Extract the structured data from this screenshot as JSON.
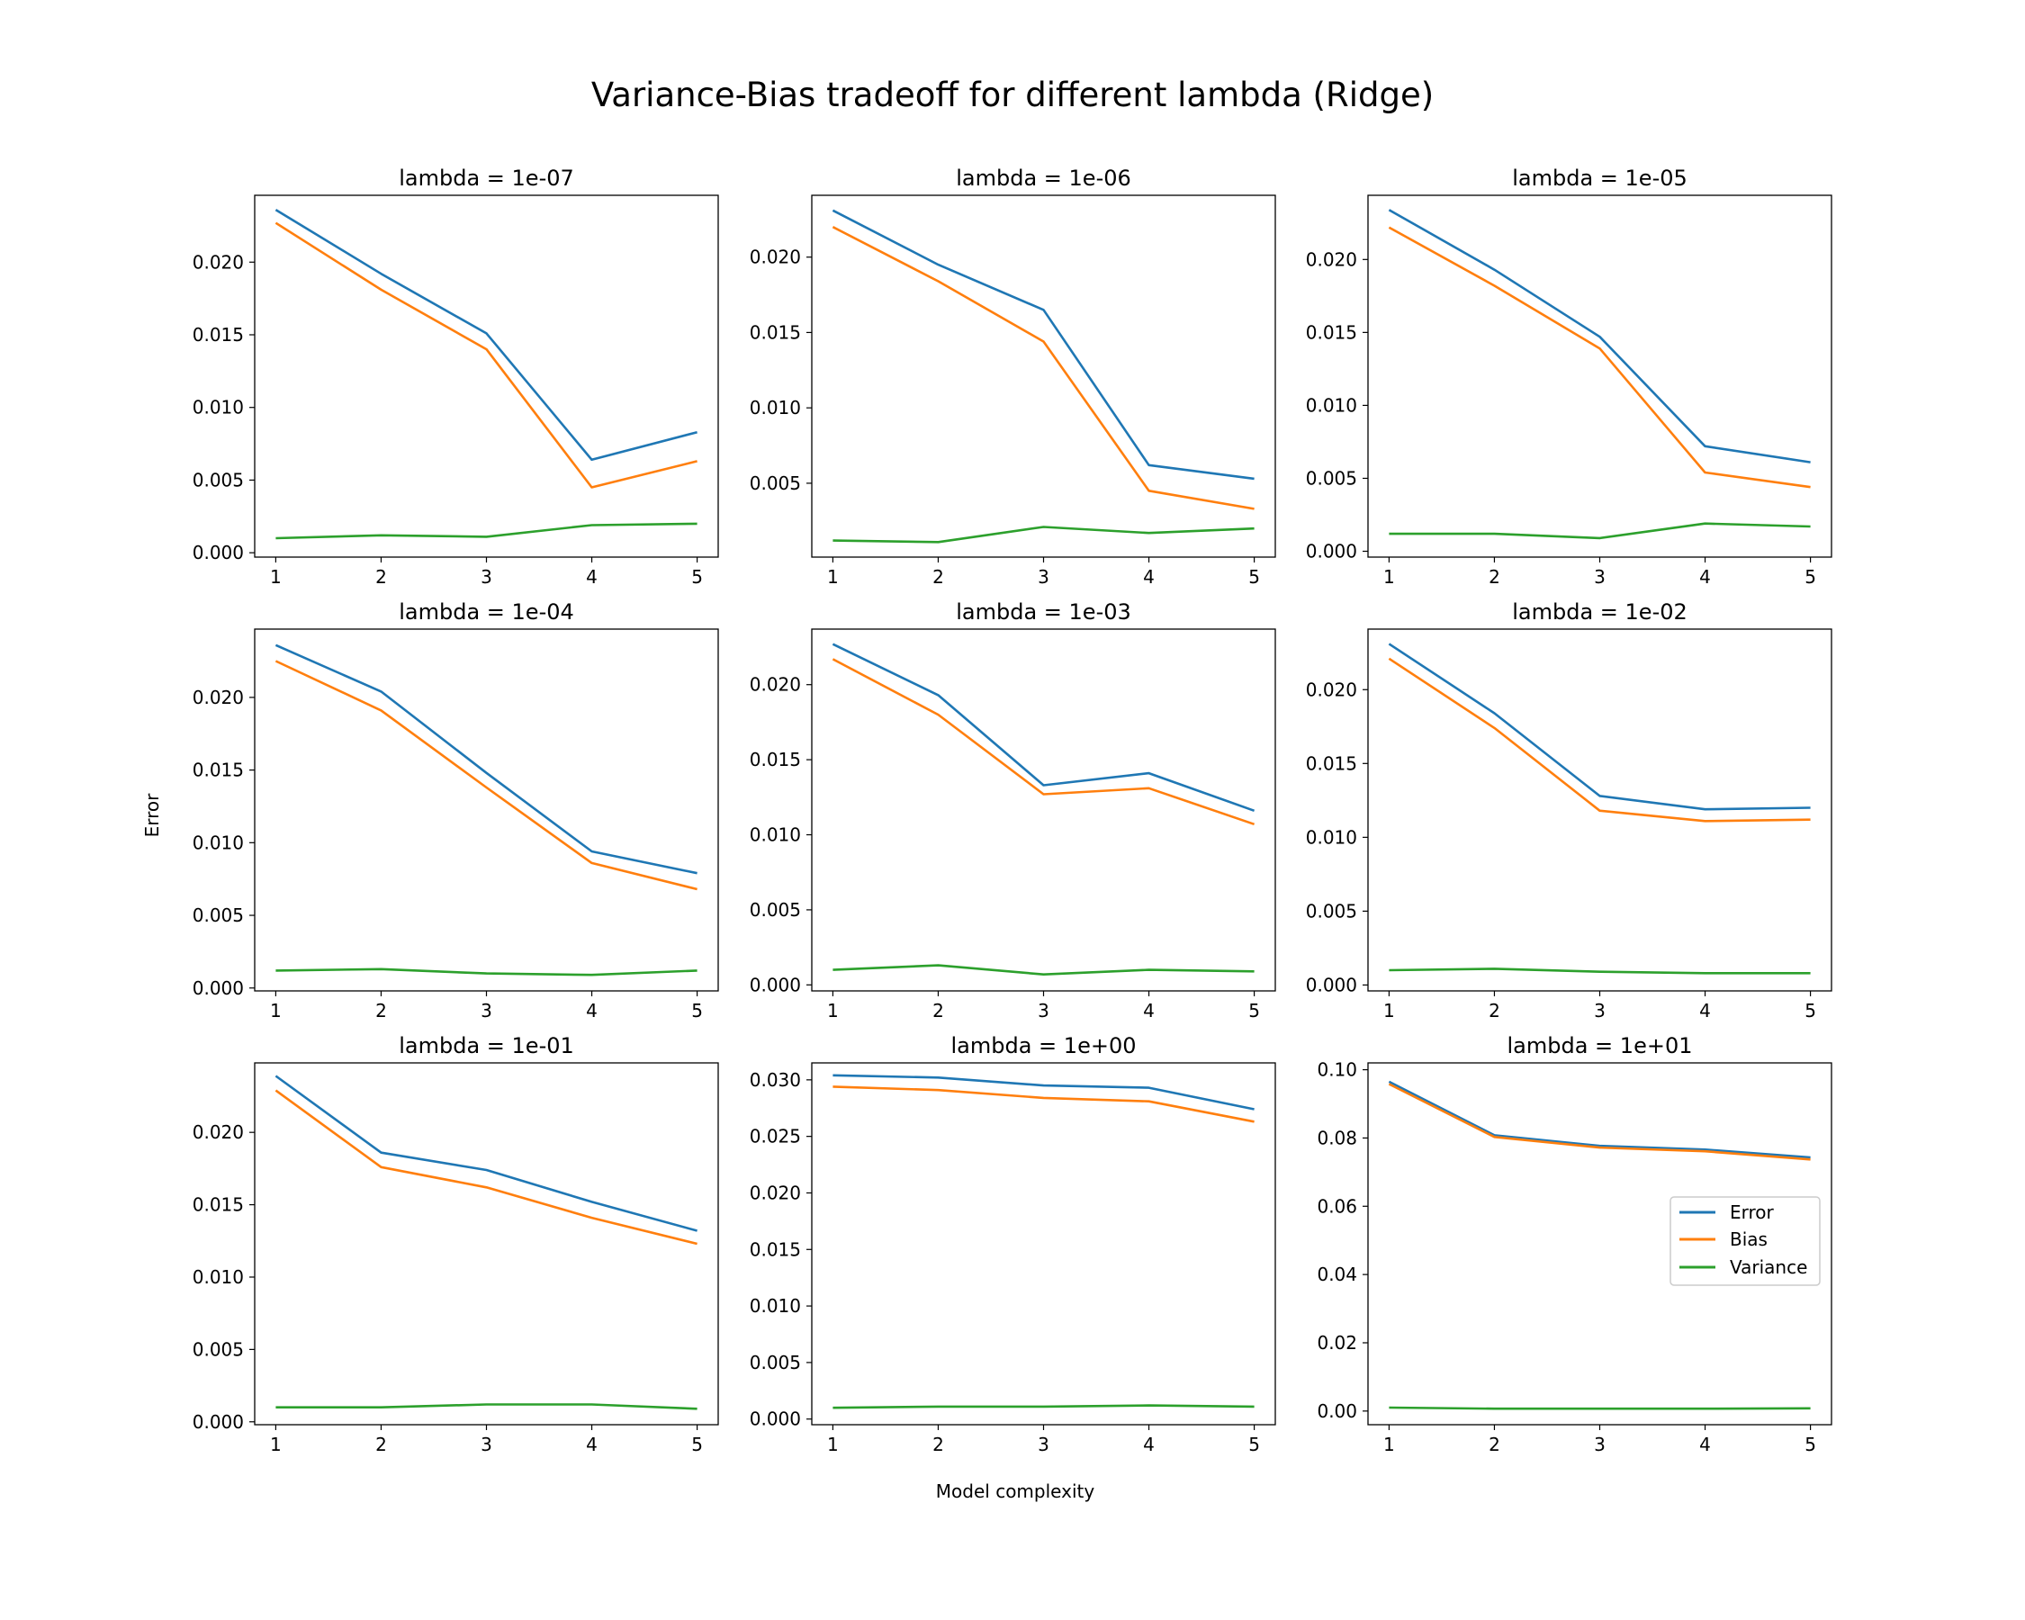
{
  "figure": {
    "title": "Variance-Bias tradeoff for different lambda (Ridge)",
    "xlabel": "Model complexity",
    "ylabel": "Error"
  },
  "legend": {
    "placement": "center-right",
    "entries": [
      {
        "label": "Error",
        "color": "#1f77b4"
      },
      {
        "label": "Bias",
        "color": "#ff7f0e"
      },
      {
        "label": "Variance",
        "color": "#2ca02c"
      }
    ]
  },
  "chart_data": [
    {
      "type": "line",
      "title": "lambda = 1e-07",
      "x": [
        1,
        2,
        3,
        4,
        5
      ],
      "xlim": [
        0.8,
        5.2
      ],
      "ylim": [
        -0.0003,
        0.0246
      ],
      "yticks": [
        0.0,
        0.005,
        0.01,
        0.015,
        0.02
      ],
      "ytick_labels": [
        "0.000",
        "0.005",
        "0.010",
        "0.015",
        "0.020"
      ],
      "series": [
        {
          "name": "Error",
          "color": "#1f77b4",
          "values": [
            0.0236,
            0.0192,
            0.0151,
            0.0064,
            0.0083
          ]
        },
        {
          "name": "Bias",
          "color": "#ff7f0e",
          "values": [
            0.0227,
            0.0181,
            0.014,
            0.0045,
            0.0063
          ]
        },
        {
          "name": "Variance",
          "color": "#2ca02c",
          "values": [
            0.001,
            0.0012,
            0.0011,
            0.0019,
            0.002
          ]
        }
      ]
    },
    {
      "type": "line",
      "title": "lambda = 1e-06",
      "x": [
        1,
        2,
        3,
        4,
        5
      ],
      "xlim": [
        0.8,
        5.2
      ],
      "ylim": [
        0.0001,
        0.0241
      ],
      "yticks": [
        0.005,
        0.01,
        0.015,
        0.02
      ],
      "ytick_labels": [
        "0.005",
        "0.010",
        "0.015",
        "0.020"
      ],
      "series": [
        {
          "name": "Error",
          "color": "#1f77b4",
          "values": [
            0.0231,
            0.0195,
            0.0165,
            0.0062,
            0.0053
          ]
        },
        {
          "name": "Bias",
          "color": "#ff7f0e",
          "values": [
            0.022,
            0.0184,
            0.0144,
            0.0045,
            0.0033
          ]
        },
        {
          "name": "Variance",
          "color": "#2ca02c",
          "values": [
            0.0012,
            0.0011,
            0.0021,
            0.0017,
            0.002
          ]
        }
      ]
    },
    {
      "type": "line",
      "title": "lambda = 1e-05",
      "x": [
        1,
        2,
        3,
        4,
        5
      ],
      "xlim": [
        0.8,
        5.2
      ],
      "ylim": [
        -0.0004,
        0.0244
      ],
      "yticks": [
        0.0,
        0.005,
        0.01,
        0.015,
        0.02
      ],
      "ytick_labels": [
        "0.000",
        "0.005",
        "0.010",
        "0.015",
        "0.020"
      ],
      "series": [
        {
          "name": "Error",
          "color": "#1f77b4",
          "values": [
            0.0234,
            0.0193,
            0.0147,
            0.0072,
            0.0061
          ]
        },
        {
          "name": "Bias",
          "color": "#ff7f0e",
          "values": [
            0.0222,
            0.0182,
            0.0139,
            0.0054,
            0.0044
          ]
        },
        {
          "name": "Variance",
          "color": "#2ca02c",
          "values": [
            0.0012,
            0.0012,
            0.0009,
            0.0019,
            0.0017
          ]
        }
      ]
    },
    {
      "type": "line",
      "title": "lambda = 1e-04",
      "x": [
        1,
        2,
        3,
        4,
        5
      ],
      "xlim": [
        0.8,
        5.2
      ],
      "ylim": [
        -0.0002,
        0.0247
      ],
      "yticks": [
        0.0,
        0.005,
        0.01,
        0.015,
        0.02
      ],
      "ytick_labels": [
        "0.000",
        "0.005",
        "0.010",
        "0.015",
        "0.020"
      ],
      "series": [
        {
          "name": "Error",
          "color": "#1f77b4",
          "values": [
            0.0236,
            0.0204,
            0.0148,
            0.0094,
            0.0079
          ]
        },
        {
          "name": "Bias",
          "color": "#ff7f0e",
          "values": [
            0.0225,
            0.0191,
            0.0138,
            0.0086,
            0.0068
          ]
        },
        {
          "name": "Variance",
          "color": "#2ca02c",
          "values": [
            0.0012,
            0.0013,
            0.001,
            0.0009,
            0.0012
          ]
        }
      ]
    },
    {
      "type": "line",
      "title": "lambda = 1e-03",
      "x": [
        1,
        2,
        3,
        4,
        5
      ],
      "xlim": [
        0.8,
        5.2
      ],
      "ylim": [
        -0.0004,
        0.0237
      ],
      "yticks": [
        0.0,
        0.005,
        0.01,
        0.015,
        0.02
      ],
      "ytick_labels": [
        "0.000",
        "0.005",
        "0.010",
        "0.015",
        "0.020"
      ],
      "series": [
        {
          "name": "Error",
          "color": "#1f77b4",
          "values": [
            0.0227,
            0.0193,
            0.0133,
            0.0141,
            0.0116
          ]
        },
        {
          "name": "Bias",
          "color": "#ff7f0e",
          "values": [
            0.0217,
            0.018,
            0.0127,
            0.0131,
            0.0107
          ]
        },
        {
          "name": "Variance",
          "color": "#2ca02c",
          "values": [
            0.001,
            0.0013,
            0.0007,
            0.001,
            0.0009
          ]
        }
      ]
    },
    {
      "type": "line",
      "title": "lambda = 1e-02",
      "x": [
        1,
        2,
        3,
        4,
        5
      ],
      "xlim": [
        0.8,
        5.2
      ],
      "ylim": [
        -0.0004,
        0.0241
      ],
      "yticks": [
        0.0,
        0.005,
        0.01,
        0.015,
        0.02
      ],
      "ytick_labels": [
        "0.000",
        "0.005",
        "0.010",
        "0.015",
        "0.020"
      ],
      "series": [
        {
          "name": "Error",
          "color": "#1f77b4",
          "values": [
            0.0231,
            0.0184,
            0.0128,
            0.0119,
            0.012
          ]
        },
        {
          "name": "Bias",
          "color": "#ff7f0e",
          "values": [
            0.0221,
            0.0174,
            0.0118,
            0.0111,
            0.0112
          ]
        },
        {
          "name": "Variance",
          "color": "#2ca02c",
          "values": [
            0.001,
            0.0011,
            0.0009,
            0.0008,
            0.0008
          ]
        }
      ]
    },
    {
      "type": "line",
      "title": "lambda = 1e-01",
      "x": [
        1,
        2,
        3,
        4,
        5
      ],
      "xlim": [
        0.8,
        5.2
      ],
      "ylim": [
        -0.0002,
        0.0248
      ],
      "yticks": [
        0.0,
        0.005,
        0.01,
        0.015,
        0.02
      ],
      "ytick_labels": [
        "0.000",
        "0.005",
        "0.010",
        "0.015",
        "0.020"
      ],
      "series": [
        {
          "name": "Error",
          "color": "#1f77b4",
          "values": [
            0.0239,
            0.0186,
            0.0174,
            0.0152,
            0.0132
          ]
        },
        {
          "name": "Bias",
          "color": "#ff7f0e",
          "values": [
            0.0229,
            0.0176,
            0.0162,
            0.0141,
            0.0123
          ]
        },
        {
          "name": "Variance",
          "color": "#2ca02c",
          "values": [
            0.001,
            0.001,
            0.0012,
            0.0012,
            0.0009
          ]
        }
      ]
    },
    {
      "type": "line",
      "title": "lambda = 1e+00",
      "x": [
        1,
        2,
        3,
        4,
        5
      ],
      "xlim": [
        0.8,
        5.2
      ],
      "ylim": [
        -0.0005,
        0.0315
      ],
      "yticks": [
        0.0,
        0.005,
        0.01,
        0.015,
        0.02,
        0.025,
        0.03
      ],
      "ytick_labels": [
        "0.000",
        "0.005",
        "0.010",
        "0.015",
        "0.020",
        "0.025",
        "0.030"
      ],
      "series": [
        {
          "name": "Error",
          "color": "#1f77b4",
          "values": [
            0.0304,
            0.0302,
            0.0295,
            0.0293,
            0.0274
          ]
        },
        {
          "name": "Bias",
          "color": "#ff7f0e",
          "values": [
            0.0294,
            0.0291,
            0.0284,
            0.0281,
            0.0263
          ]
        },
        {
          "name": "Variance",
          "color": "#2ca02c",
          "values": [
            0.001,
            0.0011,
            0.0011,
            0.0012,
            0.0011
          ]
        }
      ]
    },
    {
      "type": "line",
      "title": "lambda = 1e+01",
      "x": [
        1,
        2,
        3,
        4,
        5
      ],
      "xlim": [
        0.8,
        5.2
      ],
      "ylim": [
        -0.004,
        0.102
      ],
      "yticks": [
        0.0,
        0.02,
        0.04,
        0.06,
        0.08,
        0.1
      ],
      "ytick_labels": [
        "0.00",
        "0.02",
        "0.04",
        "0.06",
        "0.08",
        "0.10"
      ],
      "series": [
        {
          "name": "Error",
          "color": "#1f77b4",
          "values": [
            0.0965,
            0.0808,
            0.0777,
            0.0766,
            0.0743
          ]
        },
        {
          "name": "Bias",
          "color": "#ff7f0e",
          "values": [
            0.0958,
            0.0803,
            0.0772,
            0.0761,
            0.0737
          ]
        },
        {
          "name": "Variance",
          "color": "#2ca02c",
          "values": [
            0.001,
            0.0007,
            0.0007,
            0.0007,
            0.0008
          ]
        }
      ]
    }
  ]
}
